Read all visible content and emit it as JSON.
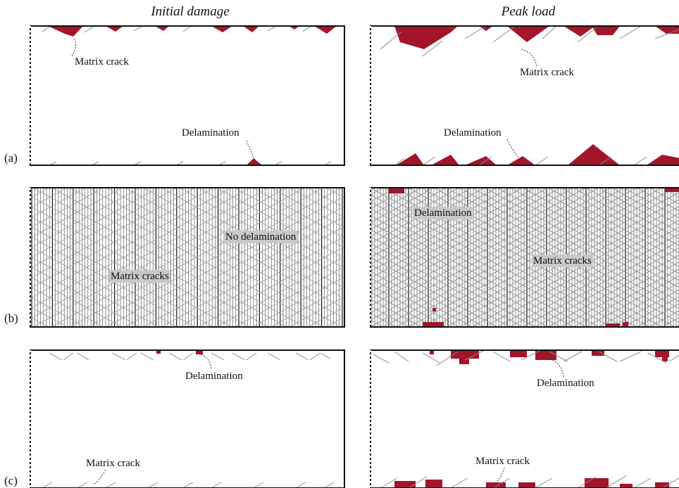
{
  "columns": {
    "left_title": "Initial damage",
    "right_title": "Peak load"
  },
  "rows": [
    {
      "label": "(a)",
      "left": {
        "annotations": [
          "Matrix crack",
          "Delamination"
        ]
      },
      "right": {
        "annotations": [
          "Matrix crack",
          "Delamination"
        ]
      }
    },
    {
      "label": "(b)",
      "left": {
        "annotations": [
          "No delamination",
          "Matrix cracks"
        ]
      },
      "right": {
        "annotations": [
          "Delamination",
          "Matrix cracks"
        ]
      }
    },
    {
      "label": "(c)",
      "left": {
        "annotations": [
          "Delamination",
          "Matrix crack"
        ]
      },
      "right": {
        "annotations": [
          "Delamination",
          "Matrix crack"
        ]
      }
    }
  ],
  "colors": {
    "damage": "#a3152a",
    "crack_line": "#8c8c8c",
    "dense_line": "#222222",
    "label_box": "#c8c8c8"
  }
}
